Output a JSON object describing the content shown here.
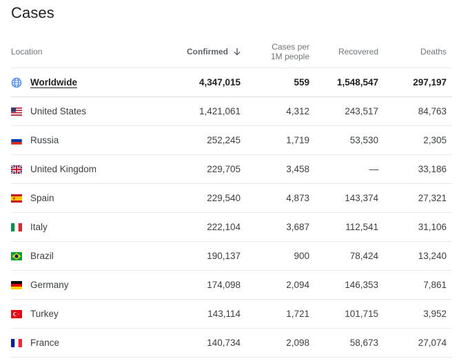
{
  "page": {
    "title": "Cases"
  },
  "columns": {
    "location": "Location",
    "confirmed": "Confirmed",
    "cases_per_1": "Cases per",
    "cases_per_2": "1M people",
    "recovered": "Recovered",
    "deaths": "Deaths"
  },
  "worldwide": {
    "name": "Worldwide",
    "confirmed": "4,347,015",
    "per_million": "559",
    "recovered": "1,548,547",
    "deaths": "297,197",
    "icon": "globe-icon"
  },
  "rows": [
    {
      "flag": "us-flag-icon",
      "name": "United States",
      "confirmed": "1,421,061",
      "per_million": "4,312",
      "recovered": "243,517",
      "deaths": "84,763"
    },
    {
      "flag": "russia-flag-icon",
      "name": "Russia",
      "confirmed": "252,245",
      "per_million": "1,719",
      "recovered": "53,530",
      "deaths": "2,305"
    },
    {
      "flag": "uk-flag-icon",
      "name": "United Kingdom",
      "confirmed": "229,705",
      "per_million": "3,458",
      "recovered": "—",
      "deaths": "33,186"
    },
    {
      "flag": "spain-flag-icon",
      "name": "Spain",
      "confirmed": "229,540",
      "per_million": "4,873",
      "recovered": "143,374",
      "deaths": "27,321"
    },
    {
      "flag": "italy-flag-icon",
      "name": "Italy",
      "confirmed": "222,104",
      "per_million": "3,687",
      "recovered": "112,541",
      "deaths": "31,106"
    },
    {
      "flag": "brazil-flag-icon",
      "name": "Brazil",
      "confirmed": "190,137",
      "per_million": "900",
      "recovered": "78,424",
      "deaths": "13,240"
    },
    {
      "flag": "germany-flag-icon",
      "name": "Germany",
      "confirmed": "174,098",
      "per_million": "2,094",
      "recovered": "146,353",
      "deaths": "7,861"
    },
    {
      "flag": "turkey-flag-icon",
      "name": "Turkey",
      "confirmed": "143,114",
      "per_million": "1,721",
      "recovered": "101,715",
      "deaths": "3,952"
    },
    {
      "flag": "france-flag-icon",
      "name": "France",
      "confirmed": "140,734",
      "per_million": "2,098",
      "recovered": "58,673",
      "deaths": "27,074"
    }
  ],
  "colors": {
    "text": "#202124",
    "muted": "#70757a",
    "divider": "#e8eaed",
    "globe": "#4285f4"
  }
}
